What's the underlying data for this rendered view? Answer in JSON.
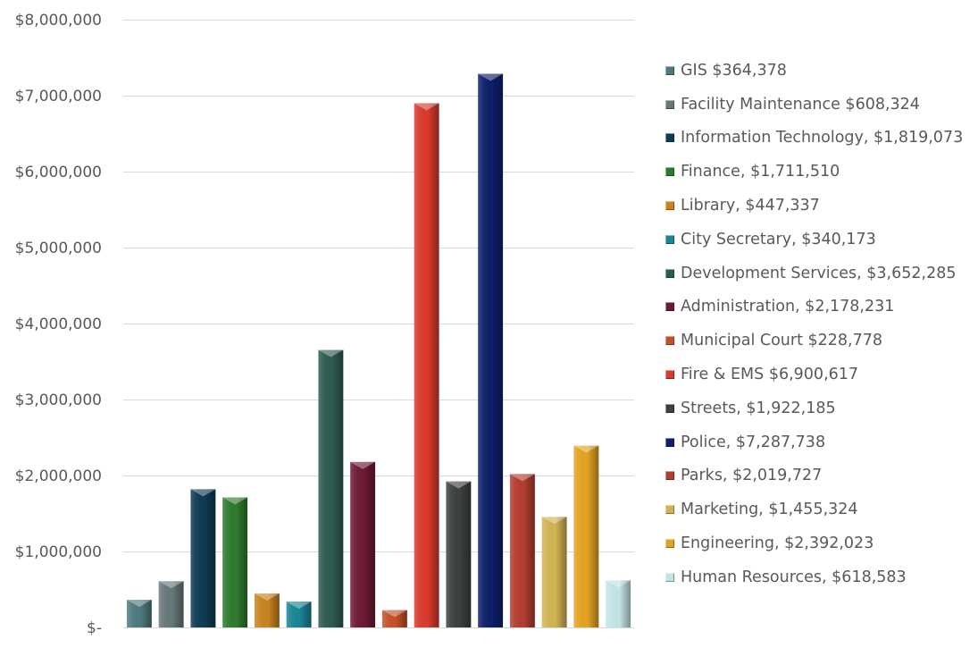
{
  "chart_data": {
    "type": "bar",
    "title": "",
    "xlabel": "",
    "ylabel": "",
    "ylim": [
      0,
      8000000
    ],
    "yticks": [
      0,
      1000000,
      2000000,
      3000000,
      4000000,
      5000000,
      6000000,
      7000000,
      8000000
    ],
    "ytick_labels": [
      "$-",
      "$1,000,000",
      "$2,000,000",
      "$3,000,000",
      "$4,000,000",
      "$5,000,000",
      "$6,000,000",
      "$7,000,000",
      "$8,000,000"
    ],
    "grid": true,
    "legend_position": "right",
    "categories": [
      "GIS",
      "Facility Maintenance",
      "Information Technology",
      "Finance",
      "Library",
      "City Secretary",
      "Development Services",
      "Administration",
      "Municipal Court",
      "Fire & EMS",
      "Streets",
      "Police",
      "Parks",
      "Marketing",
      "Engineering",
      "Human Resources"
    ],
    "values": [
      364378,
      608324,
      1819073,
      1711510,
      447337,
      340173,
      3652285,
      2178231,
      228778,
      6900617,
      1922185,
      7287738,
      2019727,
      1455324,
      2392023,
      618583
    ],
    "legend_labels": [
      "GIS $364,378",
      "Facility Maintenance $608,324",
      "Information Technology, $1,819,073",
      "Finance, $1,711,510",
      "Library, $447,337",
      "City Secretary, $340,173",
      "Development Services, $3,652,285",
      "Administration, $2,178,231",
      "Municipal Court $228,778",
      "Fire & EMS $6,900,617",
      "Streets, $1,922,185",
      "Police, $7,287,738",
      "Parks, $2,019,727",
      "Marketing, $1,455,324",
      "Engineering, $2,392,023",
      "Human Resources, $618,583"
    ],
    "colors": [
      "#4f7b80",
      "#66777a",
      "#0f3b55",
      "#2e7a2e",
      "#c98320",
      "#1a8596",
      "#2e5b52",
      "#6e1a34",
      "#c4502a",
      "#d93a2e",
      "#3b423f",
      "#0e1f6b",
      "#b33e30",
      "#d2b354",
      "#e2a322",
      "#c3e4e6"
    ]
  }
}
